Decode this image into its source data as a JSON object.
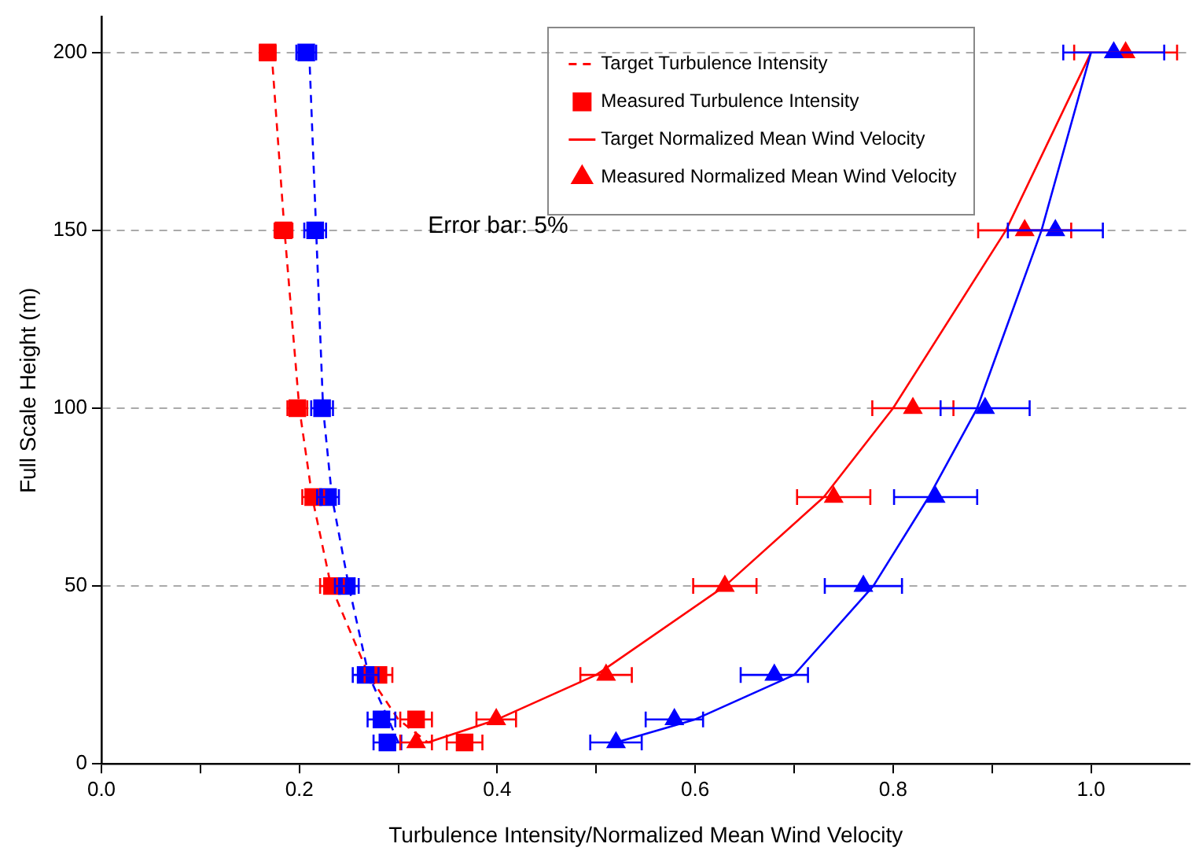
{
  "chart_data": {
    "type": "line",
    "xlabel": "Turbulence Intensity/Normalized Mean Wind Velocity",
    "ylabel": "Full Scale Height (m)",
    "xlim": [
      0,
      1.1
    ],
    "xticks": [
      {
        "value": 0,
        "label": "0.0"
      },
      {
        "value": 0.1,
        "label": null
      },
      {
        "value": 0.2,
        "label": "0.2"
      },
      {
        "value": 0.3,
        "label": null
      },
      {
        "value": 0.4,
        "label": "0.4"
      },
      {
        "value": 0.5,
        "label": null
      },
      {
        "value": 0.6,
        "label": "0.6"
      },
      {
        "value": 0.7,
        "label": null
      },
      {
        "value": 0.8,
        "label": "0.8"
      },
      {
        "value": 0.9,
        "label": null
      },
      {
        "value": 1,
        "label": "1.0"
      }
    ],
    "ylim": [
      0,
      210
    ],
    "yticks": [
      0,
      50,
      100,
      150,
      200
    ],
    "grid": "y",
    "legend": "top right",
    "annotations": [
      "Error bar: 5%"
    ],
    "series": [
      {
        "name": "Target Turbulence Intensity",
        "type": "line",
        "line_style": "dashed",
        "color": "#ff0000",
        "x": [
          0.172,
          0.185,
          0.2,
          0.213,
          0.232,
          0.27,
          0.3,
          0.33
        ],
        "values": [
          200,
          150,
          100,
          75,
          50,
          25,
          12.5,
          6
        ]
      },
      {
        "type": "line",
        "line_style": "dashed",
        "color": "#0000ff",
        "x": [
          0.21,
          0.217,
          0.224,
          0.233,
          0.25,
          0.27,
          0.29,
          0.3
        ],
        "values": [
          200,
          150,
          100,
          75,
          50,
          25,
          12.5,
          6
        ]
      },
      {
        "name": "Measured Turbulence Intensity",
        "type": "scatter",
        "marker": "square",
        "color": "#ff0000",
        "x": [
          0.168,
          0.184,
          0.198,
          0.214,
          0.233,
          0.28,
          0.318,
          0.367
        ],
        "values": [
          200,
          150,
          100,
          75,
          50,
          25,
          12.5,
          6
        ],
        "xerrors": [
          0.008,
          0.009,
          0.01,
          0.011,
          0.012,
          0.014,
          0.016,
          0.018
        ]
      },
      {
        "type": "scatter",
        "marker": "square",
        "color": "#0000ff",
        "x": [
          0.207,
          0.216,
          0.223,
          0.229,
          0.248,
          0.267,
          0.283,
          0.289
        ],
        "values": [
          200,
          150,
          100,
          75,
          50,
          25,
          12.5,
          6
        ],
        "xerrors": [
          0.01,
          0.011,
          0.011,
          0.011,
          0.012,
          0.013,
          0.014,
          0.014
        ]
      },
      {
        "name": "Target Normalized Mean Wind Velocity",
        "type": "line",
        "line_style": "solid",
        "color": "#ff0000",
        "x": [
          1.0,
          0.914,
          0.8,
          0.73,
          0.63,
          0.5,
          0.4,
          0.33
        ],
        "values": [
          200,
          150,
          100,
          75,
          50,
          25,
          12.5,
          6
        ]
      },
      {
        "type": "line",
        "line_style": "solid",
        "color": "#0000ff",
        "x": [
          1.0,
          0.95,
          0.885,
          0.836,
          0.78,
          0.7,
          0.6,
          0.52
        ],
        "values": [
          200,
          150,
          100,
          75,
          50,
          25,
          12.5,
          6
        ]
      },
      {
        "name": "Measured Normalized Mean Wind Velocity",
        "type": "scatter",
        "marker": "triangle",
        "color": "#ff0000",
        "x": [
          1.035,
          0.933,
          0.82,
          0.74,
          0.63,
          0.51,
          0.399,
          0.318
        ],
        "values": [
          200,
          150,
          100,
          75,
          50,
          25,
          12.5,
          6
        ],
        "xerrors": [
          0.052,
          0.047,
          0.041,
          0.037,
          0.032,
          0.026,
          0.02,
          0.016
        ]
      },
      {
        "type": "scatter",
        "marker": "triangle",
        "color": "#0000ff",
        "x": [
          1.023,
          0.964,
          0.893,
          0.843,
          0.77,
          0.68,
          0.579,
          0.52
        ],
        "values": [
          200,
          150,
          100,
          75,
          50,
          25,
          12.5,
          6
        ],
        "xerrors": [
          0.051,
          0.048,
          0.045,
          0.042,
          0.039,
          0.034,
          0.029,
          0.026
        ]
      }
    ]
  }
}
